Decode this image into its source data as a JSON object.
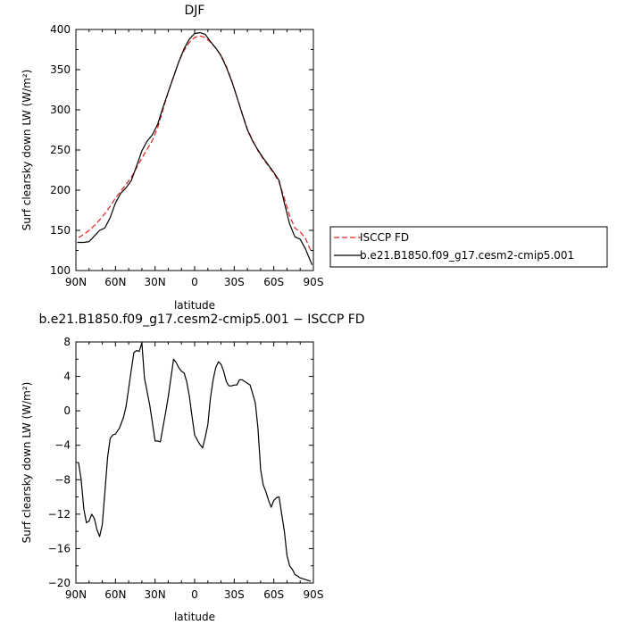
{
  "chart_data": [
    {
      "type": "line",
      "title": "DJF",
      "xlabel": "latitude",
      "ylabel": "Surf clearsky down LW (W/m²)",
      "xlim": [
        90,
        -90
      ],
      "ylim": [
        100,
        400
      ],
      "xticks": [
        90,
        60,
        30,
        0,
        -30,
        -60,
        -90
      ],
      "xtick_labels": [
        "90N",
        "60N",
        "30N",
        "0",
        "30S",
        "60S",
        "90S"
      ],
      "yticks": [
        100,
        150,
        200,
        250,
        300,
        350,
        400
      ],
      "ytick_labels": [
        "100",
        "150",
        "200",
        "250",
        "300",
        "350",
        "400"
      ],
      "legend": "right",
      "series": [
        {
          "name": "ISCCP FD",
          "color": "#e02020",
          "dash": "dashed",
          "x": [
            88,
            84,
            80,
            76,
            72,
            68,
            64,
            60,
            56,
            52,
            48,
            44,
            40,
            36,
            32,
            28,
            24,
            20,
            16,
            12,
            8,
            4,
            0,
            -4,
            -8,
            -12,
            -16,
            -20,
            -24,
            -28,
            -32,
            -36,
            -40,
            -44,
            -48,
            -52,
            -56,
            -60,
            -64,
            -68,
            -72,
            -76,
            -80,
            -84,
            -88
          ],
          "y": [
            141,
            145,
            150,
            156,
            163,
            171,
            180,
            190,
            199,
            207,
            216,
            228,
            240,
            251,
            262,
            278,
            300,
            322,
            342,
            360,
            374,
            384,
            390,
            392,
            390,
            384,
            377,
            368,
            354,
            337,
            316,
            296,
            276,
            262,
            249,
            239,
            230,
            221,
            210,
            190,
            168,
            153,
            148,
            140,
            125
          ]
        },
        {
          "name": "b.e21.B1850.f09_g17.cesm2-cmip5.001",
          "color": "#000000",
          "dash": "solid",
          "x": [
            89,
            84,
            80,
            76,
            72,
            68,
            64,
            60,
            56,
            52,
            48,
            44,
            40,
            36,
            32,
            28,
            24,
            20,
            16,
            12,
            8,
            4,
            0,
            -4,
            -8,
            -12,
            -16,
            -20,
            -24,
            -28,
            -32,
            -36,
            -40,
            -44,
            -48,
            -52,
            -56,
            -60,
            -64,
            -68,
            -72,
            -76,
            -80,
            -84,
            -89
          ],
          "y": [
            135,
            135,
            136,
            143,
            150,
            153,
            166,
            184,
            196,
            203,
            212,
            230,
            249,
            261,
            269,
            282,
            303,
            322,
            341,
            360,
            376,
            388,
            395,
            396,
            394,
            385,
            377,
            367,
            353,
            336,
            316,
            295,
            275,
            261,
            250,
            240,
            231,
            222,
            212,
            184,
            158,
            142,
            139,
            127,
            107
          ]
        }
      ]
    },
    {
      "type": "line",
      "title": "b.e21.B1850.f09_g17.cesm2-cmip5.001 − ISCCP FD",
      "xlabel": "latitude",
      "ylabel": "Surf clearsky down LW (W/m²)",
      "xlim": [
        90,
        -90
      ],
      "ylim": [
        -20,
        8
      ],
      "xticks": [
        90,
        60,
        30,
        0,
        -30,
        -60,
        -90
      ],
      "xtick_labels": [
        "90N",
        "60N",
        "30N",
        "0",
        "30S",
        "60S",
        "90S"
      ],
      "yticks": [
        -20,
        -16,
        -12,
        -8,
        -4,
        0,
        4,
        8
      ],
      "ytick_labels": [
        "−20",
        "−16",
        "−12",
        "−8",
        "−4",
        "0",
        "4",
        "8"
      ],
      "series": [
        {
          "color": "#000000",
          "dash": "solid",
          "x": [
            88,
            86,
            84,
            82,
            80,
            78,
            76,
            74,
            72,
            70,
            68,
            66,
            64,
            62,
            60,
            57,
            54,
            52,
            50,
            48,
            46,
            44,
            42,
            40,
            38,
            36,
            34,
            32,
            30,
            28,
            26,
            24,
            22,
            20,
            18,
            16,
            14,
            12,
            10,
            8,
            6,
            4,
            2,
            0,
            -2,
            -4,
            -6,
            -8,
            -10,
            -12,
            -14,
            -16,
            -18,
            -20,
            -22,
            -24,
            -26,
            -28,
            -30,
            -32,
            -34,
            -36,
            -38,
            -40,
            -42,
            -44,
            -46,
            -48,
            -50,
            -52,
            -54,
            -56,
            -58,
            -60,
            -62,
            -64,
            -66,
            -68,
            -70,
            -72,
            -74,
            -76,
            -78,
            -80,
            -82,
            -84,
            -86,
            -88
          ],
          "y": [
            -6.0,
            -8.0,
            -11.4,
            -13.0,
            -12.8,
            -12.0,
            -12.5,
            -13.8,
            -14.6,
            -13.2,
            -9.4,
            -5.4,
            -3.2,
            -2.8,
            -2.7,
            -2.0,
            -0.8,
            0.5,
            2.6,
            4.8,
            6.8,
            7.0,
            6.9,
            7.9,
            3.8,
            2.2,
            0.6,
            -1.4,
            -3.5,
            -3.5,
            -3.6,
            -1.9,
            -0.2,
            1.6,
            3.8,
            6.0,
            5.6,
            5.0,
            4.6,
            4.4,
            3.4,
            1.7,
            -0.6,
            -2.8,
            -3.4,
            -3.9,
            -4.3,
            -3.1,
            -1.6,
            1.5,
            3.6,
            5.0,
            5.7,
            5.4,
            4.6,
            3.4,
            2.9,
            2.9,
            3.0,
            3.0,
            3.6,
            3.6,
            3.4,
            3.2,
            3.0,
            2.0,
            0.9,
            -2.0,
            -6.8,
            -8.6,
            -9.4,
            -10.4,
            -11.2,
            -10.4,
            -10.1,
            -10.0,
            -12.0,
            -14.0,
            -16.8,
            -18.0,
            -18.4,
            -19.0,
            -19.2,
            -19.4,
            -19.5,
            -19.6,
            -19.7,
            -19.8
          ]
        }
      ]
    }
  ]
}
